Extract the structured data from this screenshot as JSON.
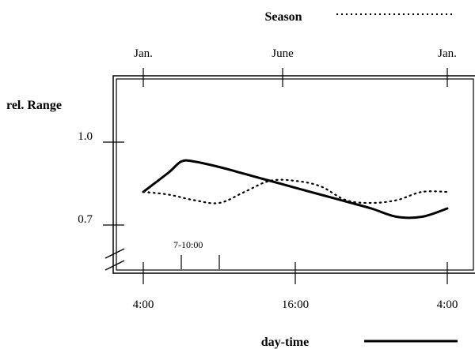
{
  "chart_data": {
    "type": "line",
    "ylabel": "rel. Range",
    "xlabel": "day-time",
    "top_axis": {
      "label": "Season",
      "ticks": [
        "Jan.",
        "June",
        "Jan."
      ]
    },
    "bottom_axis": {
      "ticks": [
        "4:00",
        "16:00",
        "4:00"
      ]
    },
    "y_ticks": [
      "1.0",
      "0.7"
    ],
    "y_tick_values": [
      1.0,
      0.7
    ],
    "ylim": [
      0.55,
      1.15
    ],
    "annotation": "7-10:00",
    "series": [
      {
        "name": "day-time",
        "style": "solid",
        "x_axis": "bottom",
        "x": [
          4,
          6,
          7,
          8,
          10,
          12,
          14,
          16,
          18,
          20,
          22,
          24,
          26,
          28
        ],
        "y": [
          0.82,
          0.89,
          0.93,
          0.93,
          0.91,
          0.885,
          0.86,
          0.835,
          0.81,
          0.785,
          0.76,
          0.73,
          0.73,
          0.76
        ]
      },
      {
        "name": "Season",
        "style": "dotted",
        "x_axis": "top",
        "x": [
          0,
          1,
          2,
          3,
          4,
          5,
          6,
          7,
          8,
          9,
          10,
          11,
          12
        ],
        "y": [
          0.82,
          0.81,
          0.79,
          0.78,
          0.82,
          0.86,
          0.86,
          0.84,
          0.79,
          0.78,
          0.79,
          0.82,
          0.82
        ]
      }
    ]
  }
}
